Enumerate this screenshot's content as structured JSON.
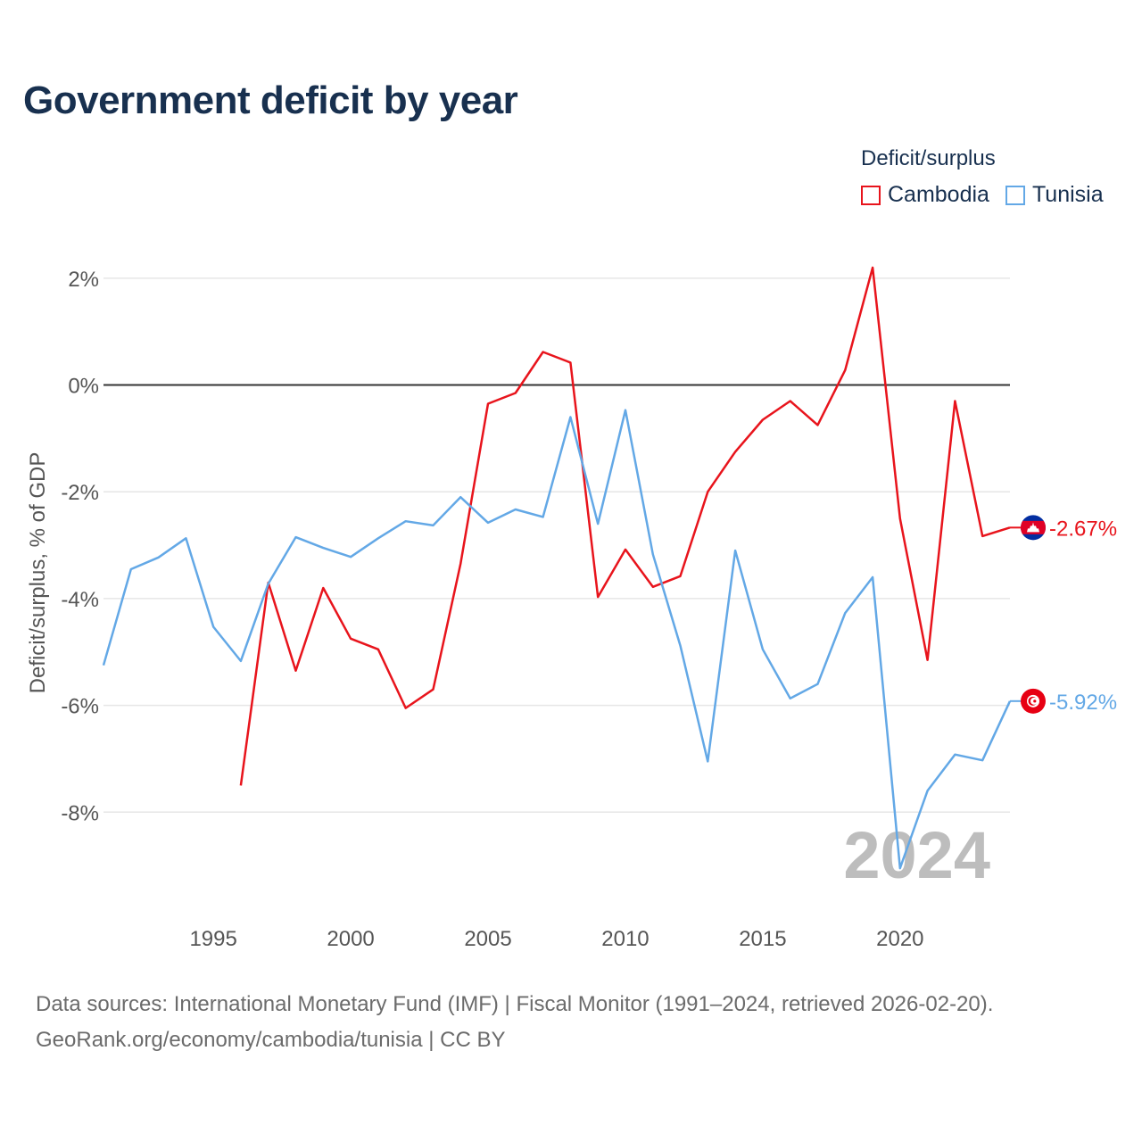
{
  "title": "Government deficit by year",
  "legend": {
    "title": "Deficit/surplus",
    "items": [
      {
        "label": "Cambodia",
        "color": "#e8141c"
      },
      {
        "label": "Tunisia",
        "color": "#63a8e6"
      }
    ]
  },
  "sources": {
    "line1": "Data sources: International Monetary Fund (IMF) | Fiscal Monitor (1991–2024, retrieved 2026-02-20).",
    "line2": "GeoRank.org/economy/cambodia/tunisia | CC BY"
  },
  "chart_data": {
    "type": "line",
    "title": "Government deficit by year",
    "xlabel": "",
    "ylabel": "Deficit/surplus, % of GDP",
    "xlim": [
      1991,
      2024
    ],
    "ylim": [
      -9.8,
      2.8
    ],
    "xticks": [
      1995,
      2000,
      2005,
      2010,
      2015,
      2020
    ],
    "yticks": [
      {
        "value": 2,
        "label": "2%"
      },
      {
        "value": 0,
        "label": "0%"
      },
      {
        "value": -2,
        "label": "-2%"
      },
      {
        "value": -4,
        "label": "-4%"
      },
      {
        "value": -6,
        "label": "-6%"
      },
      {
        "value": -8,
        "label": "-8%"
      }
    ],
    "grid": true,
    "legend_position": "top-right",
    "year_watermark": "2024",
    "series": [
      {
        "name": "Cambodia",
        "color": "#e8141c",
        "end_label": "-2.67%",
        "flag": "cambodia",
        "x": [
          1996,
          1997,
          1998,
          1999,
          2000,
          2001,
          2002,
          2003,
          2004,
          2005,
          2006,
          2007,
          2008,
          2009,
          2010,
          2011,
          2012,
          2013,
          2014,
          2015,
          2016,
          2017,
          2018,
          2019,
          2020,
          2021,
          2022,
          2023,
          2024
        ],
        "values": [
          -7.5,
          -3.7,
          -5.35,
          -3.8,
          -4.75,
          -4.95,
          -6.05,
          -5.7,
          -3.35,
          -0.35,
          -0.15,
          0.62,
          0.42,
          -3.97,
          -3.08,
          -3.78,
          -3.58,
          -2.0,
          -1.25,
          -0.65,
          -0.3,
          -0.75,
          0.28,
          2.2,
          -2.5,
          -5.15,
          -0.3,
          -2.83,
          -2.67
        ]
      },
      {
        "name": "Tunisia",
        "color": "#63a8e6",
        "end_label": "-5.92%",
        "flag": "tunisia",
        "x": [
          1991,
          1992,
          1993,
          1994,
          1995,
          1996,
          1997,
          1998,
          1999,
          2000,
          2001,
          2002,
          2003,
          2004,
          2005,
          2006,
          2007,
          2008,
          2009,
          2010,
          2011,
          2012,
          2013,
          2014,
          2015,
          2016,
          2017,
          2018,
          2019,
          2020,
          2021,
          2022,
          2023,
          2024
        ],
        "values": [
          -5.25,
          -3.45,
          -3.23,
          -2.87,
          -4.53,
          -5.17,
          -3.72,
          -2.85,
          -3.05,
          -3.22,
          -2.87,
          -2.55,
          -2.63,
          -2.1,
          -2.58,
          -2.33,
          -2.47,
          -0.6,
          -2.6,
          -0.47,
          -3.17,
          -4.88,
          -7.05,
          -3.1,
          -4.95,
          -5.87,
          -5.6,
          -4.27,
          -3.6,
          -9.05,
          -7.6,
          -6.92,
          -7.03,
          -5.92
        ]
      }
    ]
  }
}
